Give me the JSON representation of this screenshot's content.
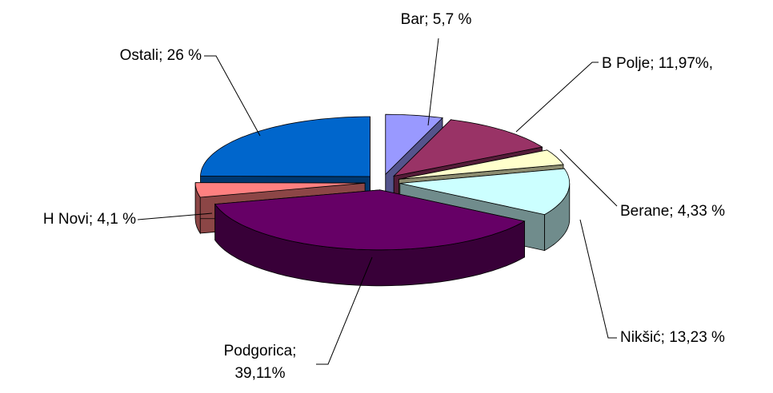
{
  "chart_data": {
    "type": "pie3d",
    "categories": [
      "Bar",
      "B Polje",
      "Berane",
      "Nikšić",
      "Podgorica",
      "H Novi",
      "Ostali"
    ],
    "values": [
      5.7,
      11.97,
      4.33,
      13.23,
      39.11,
      4.1,
      26
    ],
    "value_labels": [
      [
        "Bar; 5,7 %"
      ],
      [
        "B Polje; 11,97%,"
      ],
      [
        "Berane; 4,33 %"
      ],
      [
        "Nikšić; 13,23 %"
      ],
      [
        "Podgorica;",
        "39,11%"
      ],
      [
        "H Novi; 4,1 %"
      ],
      [
        "Ostali; 26 %"
      ]
    ],
    "colors": [
      "#9999ff",
      "#993366",
      "#ffffcc",
      "#ccffff",
      "#660066",
      "#ff8080",
      "#0066cc"
    ]
  }
}
